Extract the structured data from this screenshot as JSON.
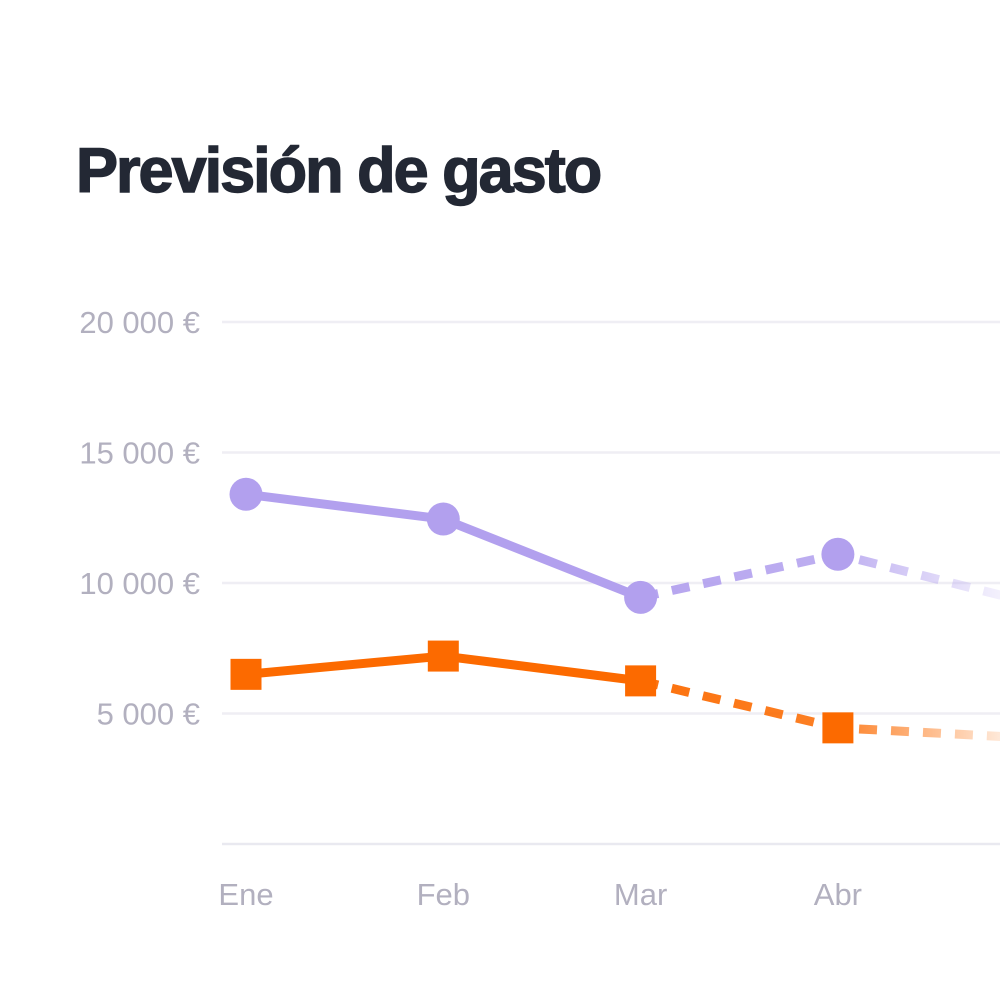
{
  "title": "Previsión de gasto",
  "chart_data": {
    "type": "line",
    "title": "Previsión de gasto",
    "xlabel": "",
    "ylabel": "",
    "categories": [
      "Ene",
      "Feb",
      "Mar",
      "Abr"
    ],
    "x_tick_labels": [
      "Ene",
      "Feb",
      "Mar",
      "Abr"
    ],
    "y_axis": {
      "tick_labels": [
        "20 000 €",
        "15 000 €",
        "10 000 €",
        "5 000 €"
      ],
      "tick_values": [
        20000,
        15000,
        10000,
        5000
      ],
      "gridline_values": [
        20000,
        15000,
        10000,
        5000,
        0
      ],
      "range": [
        0,
        20000
      ],
      "currency": "EUR",
      "grid": "on",
      "legend": "none"
    },
    "forecast_note": "dashed segments after Mar are forecast, fading out past Abr",
    "series": [
      {
        "key": "serie-morada",
        "color": "#b2a0ee",
        "marker": "circle",
        "marker_radius": 16.5,
        "values": [
          13400,
          12450,
          9450,
          11100
        ],
        "forecast_from_index": 2,
        "offchart_forecast_value": 9200
      },
      {
        "key": "serie-naranja",
        "color": "#fc6a00",
        "marker": "square",
        "marker_size": 31,
        "values": [
          6500,
          7200,
          6250,
          4450
        ],
        "forecast_from_index": 2,
        "offchart_forecast_value": 4050
      }
    ],
    "colors": {
      "title_text": "#232834",
      "axis_text": "#b2b0bf",
      "gridline": "#efeef4",
      "baseline_gridline": "#e9e9f0",
      "background": "#ffffff"
    }
  }
}
